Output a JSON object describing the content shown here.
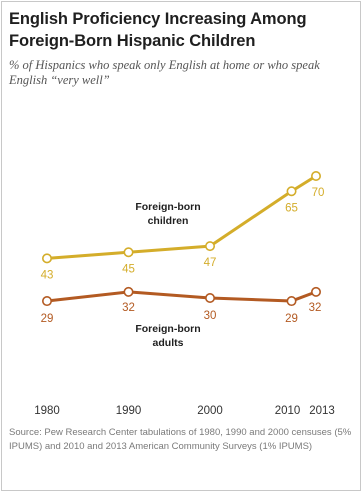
{
  "title": "English Proficiency Increasing Among Foreign-Born  Hispanic Children",
  "subtitle": "% of Hispanics who speak only English at home or who speak English “very well”",
  "source": "Source: Pew Research Center tabulations of 1980, 1990 and 2000 censuses (5% IPUMS) and 2010 and 2013 American Community Surveys (1% IPUMS)",
  "chart_data": {
    "type": "line",
    "x": [
      1980,
      1990,
      2000,
      2010,
      2013
    ],
    "x_tick_labels": [
      "1980",
      "1990",
      "2000",
      "2010",
      "2013"
    ],
    "series": [
      {
        "name": "Foreign-born children",
        "label_lines": [
          "Foreign-born",
          "children"
        ],
        "values": [
          43,
          45,
          47,
          65,
          70
        ],
        "color": "#d4ad2a"
      },
      {
        "name": "Foreign-born adults",
        "label_lines": [
          "Foreign-born",
          "adults"
        ],
        "values": [
          29,
          32,
          30,
          29,
          32
        ],
        "color": "#b35a22"
      }
    ],
    "grid": false,
    "legend": "inline labels"
  }
}
